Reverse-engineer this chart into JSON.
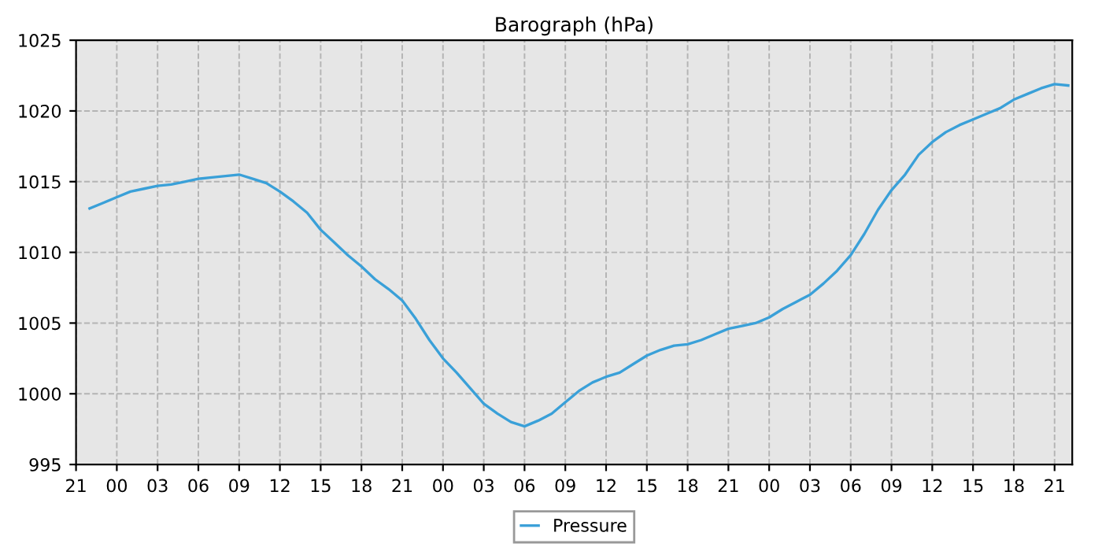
{
  "chart_data": {
    "type": "line",
    "title": "Barograph (hPa)",
    "categories": [
      "21",
      null,
      null,
      "00",
      null,
      null,
      "03",
      null,
      null,
      "06",
      null,
      null,
      "09",
      null,
      null,
      "12",
      null,
      null,
      "15",
      null,
      null,
      "18",
      null,
      null,
      "21",
      null,
      null,
      "00",
      null,
      null,
      "03",
      null,
      null,
      "06",
      null,
      null,
      "09",
      null,
      null,
      "12",
      null,
      null,
      "15",
      null,
      null,
      "18",
      null,
      null,
      "21",
      null,
      null,
      "00",
      null,
      null,
      "03",
      null,
      null,
      "06",
      null,
      null,
      "09",
      null,
      null,
      "12",
      null,
      null,
      "15",
      null,
      null,
      "18",
      null,
      null,
      "21",
      null
    ],
    "series": [
      {
        "name": "Pressure",
        "color": "#3aa0d8",
        "values": [
          null,
          1013.1,
          1013.5,
          1013.9,
          1014.3,
          1014.5,
          1014.7,
          1014.8,
          1015.0,
          1015.2,
          1015.3,
          1015.4,
          1015.5,
          1015.2,
          1014.9,
          1014.3,
          1013.6,
          1012.8,
          1011.6,
          1010.7,
          1009.8,
          1009.0,
          1008.1,
          1007.4,
          1006.6,
          1005.3,
          1003.8,
          1002.5,
          1001.5,
          1000.4,
          999.3,
          998.6,
          998.0,
          997.7,
          998.1,
          998.6,
          999.4,
          1000.2,
          1000.8,
          1001.2,
          1001.5,
          1002.1,
          1002.7,
          1003.1,
          1003.4,
          1003.5,
          1003.8,
          1004.2,
          1004.6,
          1004.8,
          1005.0,
          1005.4,
          1006.0,
          1006.5,
          1007.0,
          1007.8,
          1008.7,
          1009.8,
          1011.3,
          1013.0,
          1014.4,
          1015.5,
          1016.9,
          1017.8,
          1018.5,
          1019.0,
          1019.4,
          1019.8,
          1020.2,
          1020.8,
          1021.2,
          1021.6,
          1021.9,
          1021.8
        ]
      }
    ],
    "ylim": [
      995,
      1025
    ],
    "yticks": [
      995,
      1000,
      1005,
      1010,
      1015,
      1020,
      1025
    ],
    "grid": true,
    "legend": "bottom",
    "marker": "none",
    "line_style": "solid"
  }
}
